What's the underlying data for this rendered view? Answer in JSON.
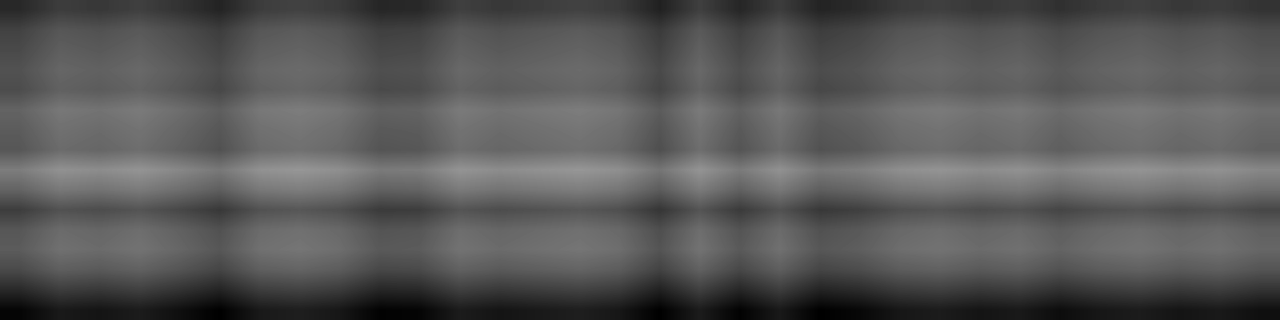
{
  "chart_data": {
    "type": "heatmap",
    "color": "gray",
    "tick_labels": false,
    "zlim": [
      0,
      100
    ],
    "cells": [
      [
        16,
        24,
        22,
        25,
        20,
        14,
        24,
        26,
        23,
        15,
        16,
        25,
        22,
        24,
        26,
        23,
        13,
        25,
        15,
        24,
        14,
        17,
        23,
        25,
        22,
        24,
        19,
        23,
        25,
        22,
        24,
        20
      ],
      [
        26,
        34,
        32,
        35,
        30,
        24,
        34,
        36,
        33,
        25,
        26,
        35,
        32,
        34,
        36,
        33,
        23,
        35,
        25,
        34,
        24,
        27,
        33,
        35,
        32,
        34,
        29,
        33,
        35,
        32,
        34,
        30
      ],
      [
        29,
        37,
        35,
        38,
        33,
        27,
        37,
        39,
        36,
        28,
        29,
        38,
        35,
        37,
        39,
        36,
        26,
        38,
        28,
        37,
        27,
        30,
        36,
        38,
        35,
        37,
        32,
        36,
        38,
        35,
        37,
        33
      ],
      [
        32,
        40,
        38,
        41,
        36,
        30,
        40,
        42,
        39,
        31,
        32,
        41,
        38,
        40,
        42,
        39,
        29,
        41,
        31,
        40,
        30,
        33,
        39,
        41,
        38,
        40,
        35,
        39,
        41,
        38,
        40,
        36
      ],
      [
        30,
        38,
        36,
        39,
        34,
        28,
        38,
        40,
        37,
        29,
        30,
        39,
        36,
        38,
        40,
        37,
        27,
        39,
        29,
        38,
        28,
        31,
        37,
        39,
        36,
        38,
        33,
        37,
        39,
        36,
        38,
        34
      ],
      [
        39,
        47,
        45,
        48,
        43,
        37,
        47,
        49,
        46,
        38,
        39,
        48,
        45,
        47,
        49,
        46,
        36,
        48,
        38,
        47,
        37,
        40,
        46,
        48,
        45,
        47,
        42,
        46,
        48,
        45,
        47,
        43
      ],
      [
        36,
        44,
        42,
        45,
        40,
        34,
        44,
        46,
        43,
        35,
        36,
        45,
        42,
        44,
        46,
        43,
        33,
        45,
        35,
        44,
        34,
        37,
        43,
        45,
        42,
        44,
        39,
        43,
        45,
        42,
        44,
        40
      ],
      [
        34,
        42,
        40,
        43,
        38,
        32,
        42,
        44,
        41,
        33,
        34,
        43,
        40,
        42,
        44,
        41,
        31,
        43,
        33,
        42,
        32,
        35,
        41,
        43,
        40,
        42,
        37,
        41,
        43,
        40,
        42,
        38
      ],
      [
        49,
        57,
        55,
        58,
        53,
        47,
        57,
        59,
        56,
        48,
        49,
        58,
        55,
        57,
        59,
        56,
        46,
        58,
        48,
        57,
        47,
        50,
        56,
        58,
        55,
        57,
        52,
        56,
        58,
        55,
        57,
        53
      ],
      [
        39,
        47,
        45,
        48,
        43,
        37,
        47,
        49,
        46,
        38,
        39,
        48,
        45,
        47,
        49,
        46,
        36,
        48,
        38,
        47,
        37,
        40,
        46,
        48,
        45,
        47,
        42,
        46,
        48,
        45,
        47,
        43
      ],
      [
        24,
        32,
        30,
        33,
        28,
        22,
        32,
        34,
        31,
        23,
        24,
        33,
        30,
        32,
        34,
        31,
        21,
        33,
        23,
        32,
        22,
        25,
        31,
        33,
        30,
        32,
        27,
        31,
        33,
        30,
        32,
        28
      ],
      [
        34,
        42,
        40,
        43,
        38,
        32,
        42,
        44,
        41,
        33,
        34,
        43,
        40,
        42,
        44,
        41,
        31,
        43,
        33,
        42,
        32,
        35,
        41,
        43,
        40,
        42,
        37,
        41,
        43,
        40,
        42,
        38
      ],
      [
        36,
        44,
        42,
        45,
        40,
        34,
        44,
        46,
        43,
        35,
        36,
        45,
        42,
        44,
        46,
        43,
        33,
        45,
        35,
        44,
        34,
        37,
        43,
        45,
        42,
        44,
        39,
        43,
        45,
        42,
        44,
        40
      ],
      [
        29,
        37,
        35,
        38,
        33,
        27,
        37,
        39,
        36,
        28,
        29,
        38,
        35,
        37,
        39,
        36,
        26,
        38,
        28,
        37,
        27,
        30,
        36,
        38,
        35,
        37,
        32,
        36,
        38,
        35,
        37,
        33
      ],
      [
        16,
        24,
        22,
        25,
        20,
        14,
        24,
        26,
        23,
        15,
        16,
        25,
        22,
        24,
        26,
        23,
        13,
        25,
        15,
        24,
        14,
        17,
        23,
        25,
        22,
        24,
        19,
        23,
        25,
        22,
        24,
        20
      ],
      [
        2,
        10,
        8,
        11,
        6,
        0,
        10,
        12,
        9,
        1,
        2,
        11,
        8,
        10,
        12,
        9,
        0,
        11,
        1,
        10,
        0,
        3,
        9,
        11,
        8,
        10,
        5,
        9,
        11,
        8,
        10,
        6
      ]
    ]
  }
}
